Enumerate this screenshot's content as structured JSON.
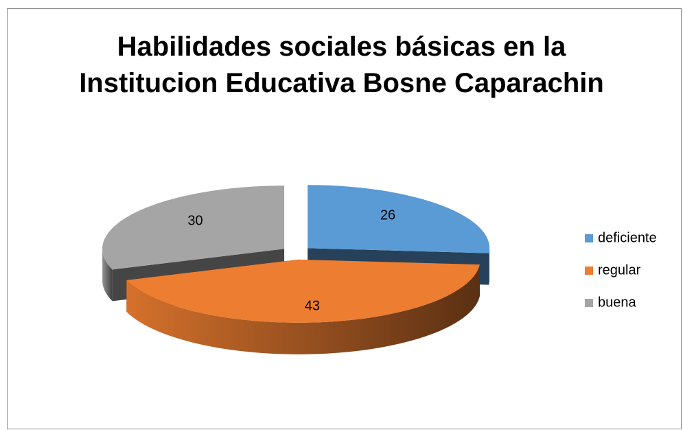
{
  "chart_data": {
    "type": "pie",
    "title": "Habilidades sociales básicas en la Institucion Educativa Bosne Caparachin",
    "categories": [
      "deficiente",
      "regular",
      "buena"
    ],
    "values": [
      26,
      43,
      30
    ],
    "colors": [
      "#5b9bd5",
      "#ed7d31",
      "#a5a5a5"
    ],
    "legend": "right"
  }
}
